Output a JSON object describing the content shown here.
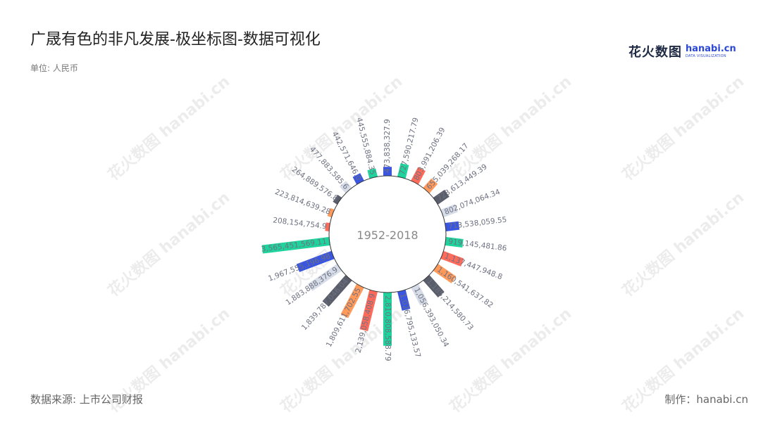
{
  "title": "广晟有色的非凡发展-极坐标图-数据可视化",
  "unit": "单位: 人民币",
  "logo": {
    "cn": "花火数图",
    "en": "hanabi.cn",
    "sub": "DATA VISUALIZATION"
  },
  "watermark": "花火数图 hanabi.cn",
  "source": "数据来源: 上市公司财报",
  "maker": "制作：hanabi.cn",
  "chart_data": {
    "type": "bar",
    "polar": true,
    "center_label": "1952-2018",
    "colors": [
      "#3a55e0",
      "#1fd49c",
      "#ff6b5b",
      "#ff9a5a",
      "#5a5e6b",
      "#d7dde8"
    ],
    "values": [
      473838327.9,
      727590217.79,
      803991206.39,
      655039268.17,
      723613449.39,
      802074064.34,
      713538059.55,
      919145481.86,
      1137447948.8,
      1160541637.82,
      1185214580.73,
      1056393050.34,
      1026795133.57,
      2810808588.79,
      2139058408.9,
      1809611702.55,
      1839787046.04,
      1883888376.9,
      1967555196.98,
      3565451569.11,
      208154754.9,
      223814639.28,
      264889576.8,
      477883585.6,
      442571646.0,
      445555884.35
    ],
    "labels": [
      "473,838,327.9",
      "727,590,217.79",
      "803,991,206.39",
      "655,039,268.17",
      "723,613,449.39",
      "802,074,064.34",
      "713,538,059.55",
      "919,145,481.86",
      "1,137,447,948.8",
      "1,160,541,637.82",
      "1,185,214,580.73",
      "1,056,393,050.34",
      "1,026,795,133.57",
      "2,810,808,588.79",
      "2,139,058,408.9",
      "1,809,611,702.55",
      "1,839,787,046.04",
      "1,883,888,376.9",
      "1,967,555,196.98",
      "3,565,451,569.11",
      "208,154,754.9",
      "223,814,639.28",
      "264,889,576.8",
      "477,883,585.6",
      "442,571,646.0",
      "445,555,884.35"
    ]
  }
}
